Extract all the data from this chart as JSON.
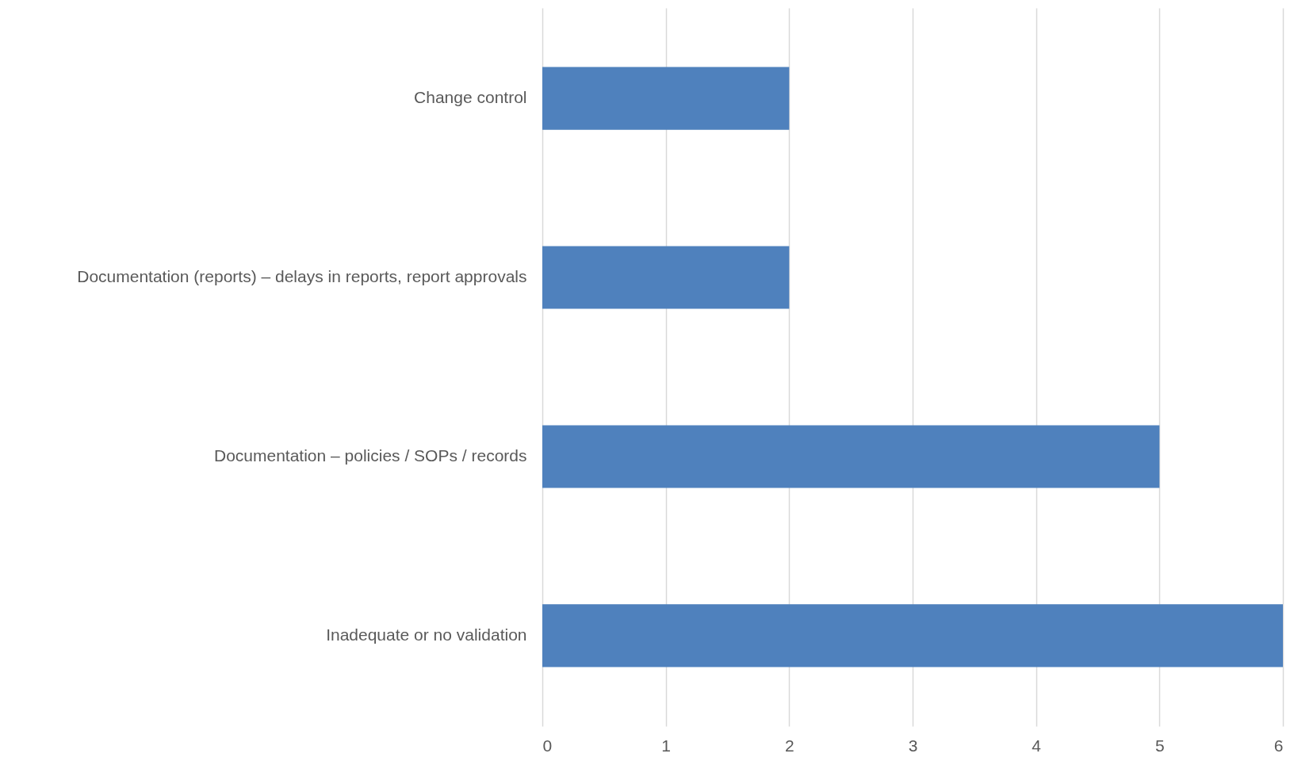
{
  "chart_data": {
    "type": "bar",
    "orientation": "horizontal",
    "categories": [
      "Change control",
      "Documentation (reports) – delays in reports, report approvals",
      "Documentation – policies / SOPs / records",
      "Inadequate or no validation"
    ],
    "values": [
      2,
      2,
      5,
      6
    ],
    "color": "#4f81bd",
    "xlim": [
      0,
      6
    ],
    "xticks": [
      0,
      1,
      2,
      3,
      4,
      5,
      6
    ],
    "grid": "x"
  }
}
